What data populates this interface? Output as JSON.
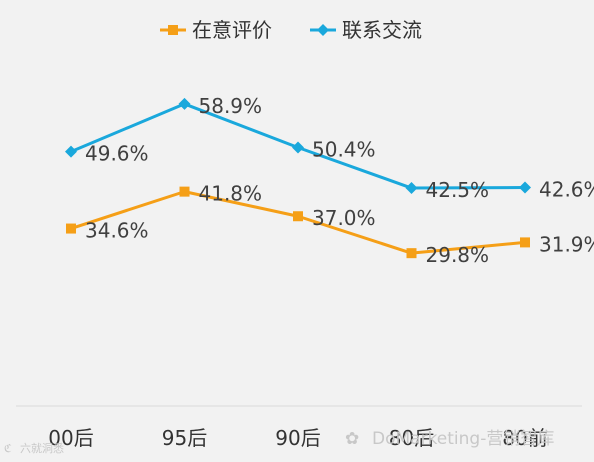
{
  "chart_data": {
    "type": "line",
    "categories": [
      "00后",
      "95后",
      "90后",
      "80后",
      "80前"
    ],
    "series": [
      {
        "name": "在意评价",
        "color": "#f59f17",
        "marker": "square",
        "values": [
          34.6,
          41.8,
          37.0,
          29.8,
          31.9
        ],
        "labels": [
          "34.6%",
          "41.8%",
          "37.0%",
          "29.8%",
          "31.9%"
        ]
      },
      {
        "name": "联系交流",
        "color": "#1aa8dc",
        "marker": "diamond",
        "values": [
          49.6,
          58.9,
          50.4,
          42.5,
          42.6
        ],
        "labels": [
          "49.6%",
          "58.9%",
          "50.4%",
          "42.5%",
          "42.6%"
        ]
      }
    ],
    "ylim": [
      0,
      70
    ],
    "grid": false,
    "legend": "top"
  },
  "watermarks": {
    "left": "六就洞悉",
    "right": "DoMarketing-营销智库"
  }
}
